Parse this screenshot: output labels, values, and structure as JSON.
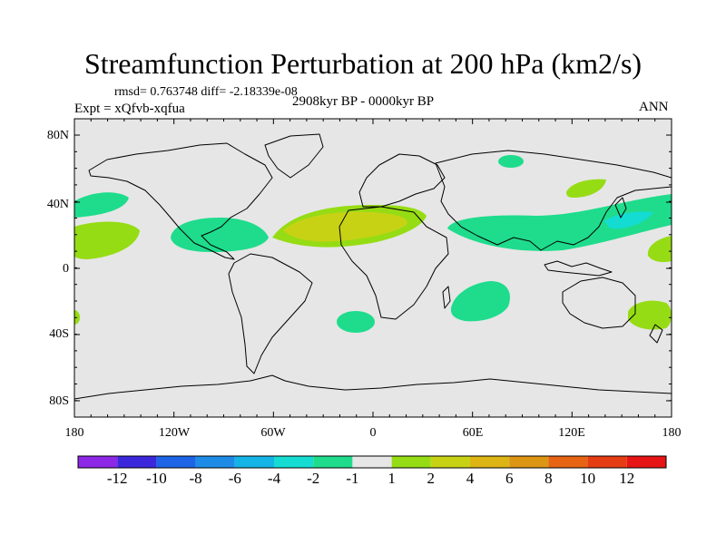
{
  "title": "Streamfunction Perturbation at 200 hPa (km2/s)",
  "stats": "rmsd= 0.763748 diff= -2.18339e-08",
  "experiment": "Expt = xQfvb-xqfua",
  "period": "2908kyr BP - 0000kyr BP",
  "season": "ANN",
  "colors": {
    "background": "#e6e6e6",
    "coast": "#000000"
  },
  "x_ticks": [
    "180",
    "120W",
    "60W",
    "0",
    "60E",
    "120E",
    "180"
  ],
  "y_ticks": [
    "80N",
    "40N",
    "0",
    "40S",
    "80S"
  ],
  "colorbar": {
    "colors": [
      "#8c28e6",
      "#3c28dc",
      "#1e64e6",
      "#1e8ce6",
      "#14b4e6",
      "#14dcd2",
      "#1edc8c",
      "#e6e6e6",
      "#96dc14",
      "#c8d214",
      "#dcb414",
      "#dc9614",
      "#e66414",
      "#e63c14",
      "#e61414"
    ],
    "labels": [
      "-12",
      "-10",
      "-8",
      "-6",
      "-4",
      "-2",
      "-1",
      "1",
      "2",
      "4",
      "6",
      "8",
      "10",
      "12"
    ]
  }
}
